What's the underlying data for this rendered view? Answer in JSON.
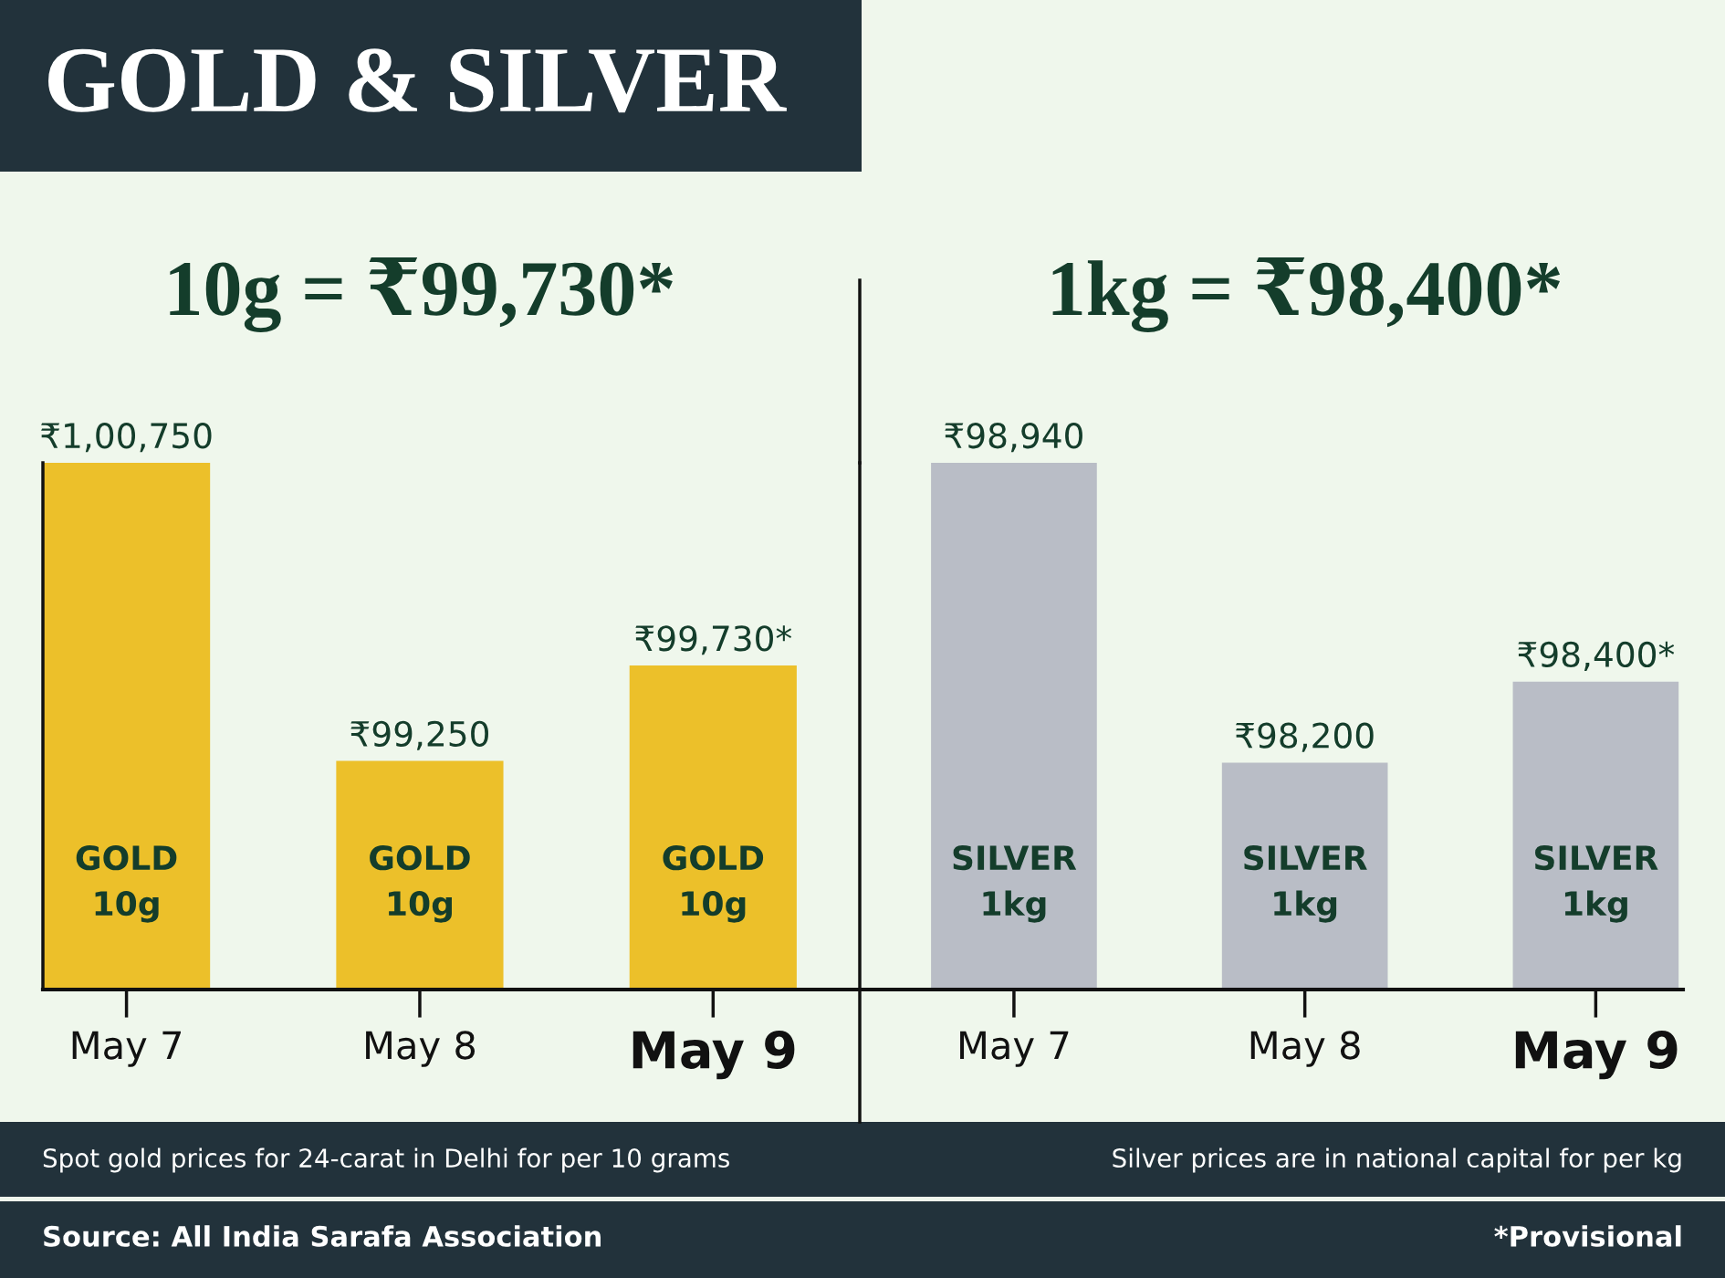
{
  "chart_data": [
    {
      "type": "bar",
      "title": "GOLD & SILVER",
      "subtitle": "10g = ₹99,730*",
      "categories": [
        "May 7",
        "May 8",
        "May 9"
      ],
      "values": [
        100750,
        99250,
        99730
      ],
      "value_labels": [
        "₹1,00,750",
        "₹99,250",
        "₹99,730*"
      ],
      "color": "#ecc02a",
      "ylim": [
        98100,
        100750
      ],
      "tick_labels": "x",
      "annotations": [
        "GOLD\n10g",
        "GOLD\n10g",
        "GOLD\n10g",
        "Spot gold prices for 24-carat in Delhi for per 10 grams",
        "Source: All India Sarafa Association"
      ]
    },
    {
      "type": "bar",
      "subtitle": "1kg = ₹98,400*",
      "categories": [
        "May 7",
        "May 8",
        "May 9"
      ],
      "values": [
        98940,
        98200,
        98400
      ],
      "value_labels": [
        "₹98,940",
        "₹98,200",
        "₹98,400*"
      ],
      "color": "#b9bdc6",
      "ylim": [
        97640,
        98940
      ],
      "tick_labels": "x",
      "annotations": [
        "SILVER\n1kg",
        "SILVER\n1kg",
        "SILVER\n1kg",
        "Silver prices are in national capital for per kg",
        "*Provisional"
      ]
    }
  ]
}
